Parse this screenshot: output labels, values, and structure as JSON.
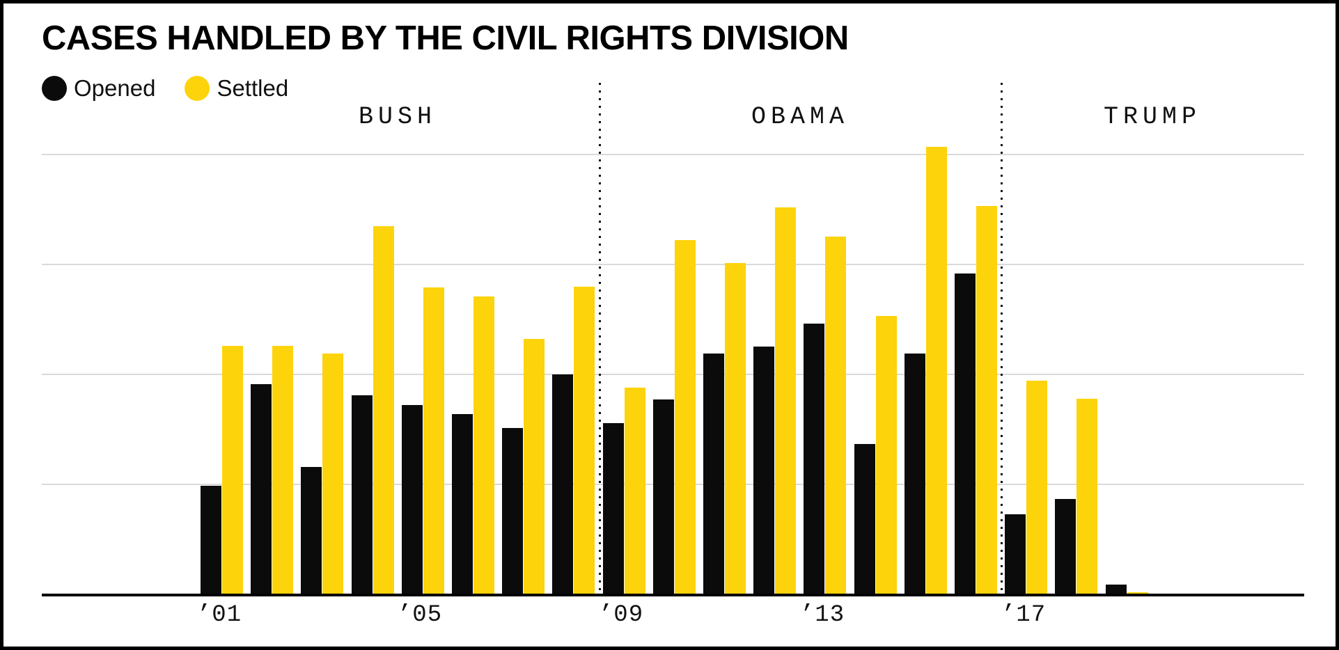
{
  "title": "CASES HANDLED BY THE CIVIL RIGHTS DIVISION",
  "legend": {
    "items": [
      {
        "label": "Opened",
        "color": "#0b0b0b"
      },
      {
        "label": "Settled",
        "color": "#fdd30b"
      }
    ]
  },
  "colors": {
    "opened": "#0b0b0b",
    "settled": "#fdd30b",
    "gridline": "#d9d9d9",
    "axis": "#000000",
    "separator": "#111111",
    "background": "#ffffff",
    "frame": "#000000"
  },
  "chart_data": {
    "type": "bar",
    "categories": [
      2001,
      2002,
      2003,
      2004,
      2005,
      2006,
      2007,
      2008,
      2009,
      2010,
      2011,
      2012,
      2013,
      2014,
      2015,
      2016,
      2017,
      2018,
      2019
    ],
    "series": [
      {
        "name": "Opened",
        "color": "#0b0b0b",
        "values": [
          0.99,
          1.91,
          1.16,
          1.81,
          1.72,
          1.64,
          1.51,
          2.0,
          1.56,
          1.77,
          2.19,
          2.25,
          2.46,
          1.37,
          2.19,
          2.92,
          0.73,
          0.87,
          0.09
        ]
      },
      {
        "name": "Settled",
        "color": "#fdd30b",
        "values": [
          2.26,
          2.26,
          2.19,
          3.35,
          2.79,
          2.71,
          2.32,
          2.8,
          1.88,
          3.22,
          3.01,
          3.52,
          3.25,
          2.53,
          4.07,
          3.53,
          1.94,
          1.78,
          0.02
        ]
      }
    ],
    "value_units": "gridline units (y axis unlabeled in source; 1 unit = one gridline interval)",
    "ylim": [
      0,
      4.5
    ],
    "gridlines": [
      1,
      2,
      3,
      4
    ],
    "grid": "horizontal only",
    "xlabel": "",
    "ylabel": "",
    "x_tick_labels": [
      "’01",
      "’05",
      "’09",
      "’13",
      "’17"
    ],
    "x_tick_years": [
      2001,
      2005,
      2009,
      2013,
      2017
    ],
    "sections": [
      {
        "label": "BUSH",
        "from": 2001,
        "to": 2008
      },
      {
        "label": "OBAMA",
        "from": 2009,
        "to": 2016
      },
      {
        "label": "TRUMP",
        "from": 2017,
        "to": 2019
      }
    ],
    "legend_position": "top-left"
  }
}
